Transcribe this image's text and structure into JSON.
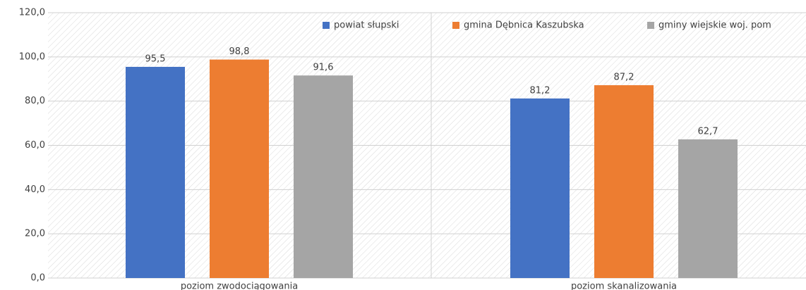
{
  "chart_data": {
    "type": "bar",
    "categories": [
      "poziom zwodociągowania",
      "poziom skanalizowania"
    ],
    "series": [
      {
        "name": "powiat słupski",
        "color": "#4472c4",
        "values": [
          95.5,
          81.2
        ],
        "value_labels": [
          "95,5",
          "81,2"
        ]
      },
      {
        "name": "gmina Dębnica Kaszubska",
        "color": "#ed7d31",
        "values": [
          98.8,
          87.2
        ],
        "value_labels": [
          "98,8",
          "87,2"
        ]
      },
      {
        "name": "gminy wiejskie woj. pom",
        "color": "#a5a5a5",
        "values": [
          91.6,
          62.7
        ],
        "value_labels": [
          "91,6",
          "62,7"
        ]
      }
    ],
    "ylim": [
      0,
      120
    ],
    "yticks": [
      {
        "value": 0,
        "label": "0,0"
      },
      {
        "value": 20,
        "label": "20,0"
      },
      {
        "value": 40,
        "label": "40,0"
      },
      {
        "value": 60,
        "label": "60,0"
      },
      {
        "value": 80,
        "label": "80,0"
      },
      {
        "value": 100,
        "label": "100,0"
      },
      {
        "value": 120,
        "label": "120,0"
      }
    ],
    "grid": true,
    "legend": "top"
  }
}
